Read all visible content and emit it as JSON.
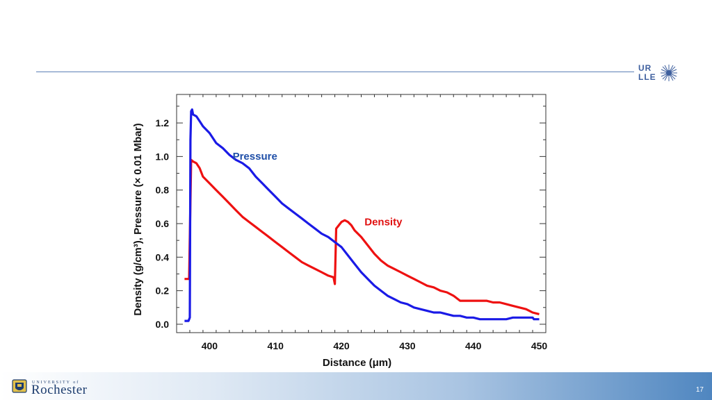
{
  "logo": {
    "icon": "starburst-icon",
    "line1": "UR",
    "line2": "LLE",
    "color": "#3e5f9e"
  },
  "footer": {
    "university_small": "UNIVERSITY of",
    "university_name": "Rochester",
    "page_number": "17"
  },
  "chart_data": {
    "type": "line",
    "title": "",
    "xlabel": "Distance (μm)",
    "ylabel": "Density (g/cm³), Pressure (× 0.01 Mbar)",
    "xlim": [
      395,
      451
    ],
    "ylim": [
      -0.05,
      1.37
    ],
    "xticks": [
      400,
      410,
      420,
      430,
      440,
      450
    ],
    "xtick_labels": [
      "400",
      "410",
      "420",
      "430",
      "440",
      "450"
    ],
    "yticks": [
      0.0,
      0.2,
      0.4,
      0.6,
      0.8,
      1.0,
      1.2
    ],
    "ytick_labels": [
      "0.0",
      "0.2",
      "0.4",
      "0.6",
      "0.8",
      "1.0",
      "1.2"
    ],
    "grid": false,
    "legend": "inline labels",
    "series": [
      {
        "name": "Pressure",
        "color": "#1a1ae6",
        "label_color": "#1f4fa8",
        "points": [
          [
            396.2,
            0.02
          ],
          [
            396.8,
            0.02
          ],
          [
            397.0,
            0.04
          ],
          [
            397.1,
            1.1
          ],
          [
            397.2,
            1.27
          ],
          [
            397.35,
            1.28
          ],
          [
            397.5,
            1.25
          ],
          [
            398.0,
            1.24
          ],
          [
            398.5,
            1.21
          ],
          [
            399.0,
            1.18
          ],
          [
            400.0,
            1.14
          ],
          [
            401.0,
            1.08
          ],
          [
            402.0,
            1.05
          ],
          [
            403.0,
            1.01
          ],
          [
            404.0,
            0.98
          ],
          [
            405.0,
            0.96
          ],
          [
            406.0,
            0.93
          ],
          [
            407.0,
            0.88
          ],
          [
            408.0,
            0.84
          ],
          [
            409.0,
            0.8
          ],
          [
            410.0,
            0.76
          ],
          [
            411.0,
            0.72
          ],
          [
            412.0,
            0.69
          ],
          [
            413.0,
            0.66
          ],
          [
            414.0,
            0.63
          ],
          [
            415.0,
            0.6
          ],
          [
            416.0,
            0.57
          ],
          [
            417.0,
            0.54
          ],
          [
            418.0,
            0.52
          ],
          [
            419.0,
            0.49
          ],
          [
            420.0,
            0.46
          ],
          [
            421.0,
            0.41
          ],
          [
            422.0,
            0.36
          ],
          [
            423.0,
            0.31
          ],
          [
            424.0,
            0.27
          ],
          [
            425.0,
            0.23
          ],
          [
            426.0,
            0.2
          ],
          [
            427.0,
            0.17
          ],
          [
            428.0,
            0.15
          ],
          [
            429.0,
            0.13
          ],
          [
            430.0,
            0.12
          ],
          [
            431.0,
            0.1
          ],
          [
            432.0,
            0.09
          ],
          [
            433.0,
            0.08
          ],
          [
            434.0,
            0.07
          ],
          [
            435.0,
            0.07
          ],
          [
            436.0,
            0.06
          ],
          [
            437.0,
            0.05
          ],
          [
            438.0,
            0.05
          ],
          [
            439.0,
            0.04
          ],
          [
            440.0,
            0.04
          ],
          [
            441.0,
            0.03
          ],
          [
            445.0,
            0.03
          ],
          [
            446.0,
            0.04
          ],
          [
            449.0,
            0.04
          ],
          [
            449.2,
            0.03
          ],
          [
            450.0,
            0.03
          ]
        ]
      },
      {
        "name": "Density",
        "color": "#ee1111",
        "label_color": "#e01010",
        "points": [
          [
            396.2,
            0.27
          ],
          [
            396.9,
            0.27
          ],
          [
            397.2,
            0.98
          ],
          [
            397.5,
            0.97
          ],
          [
            398.0,
            0.96
          ],
          [
            398.5,
            0.93
          ],
          [
            399.0,
            0.88
          ],
          [
            399.5,
            0.86
          ],
          [
            400.0,
            0.84
          ],
          [
            401.0,
            0.8
          ],
          [
            402.0,
            0.76
          ],
          [
            403.0,
            0.72
          ],
          [
            404.0,
            0.68
          ],
          [
            405.0,
            0.64
          ],
          [
            406.0,
            0.61
          ],
          [
            407.0,
            0.58
          ],
          [
            408.0,
            0.55
          ],
          [
            409.0,
            0.52
          ],
          [
            410.0,
            0.49
          ],
          [
            411.0,
            0.46
          ],
          [
            412.0,
            0.43
          ],
          [
            413.0,
            0.4
          ],
          [
            414.0,
            0.37
          ],
          [
            415.0,
            0.35
          ],
          [
            416.0,
            0.33
          ],
          [
            417.0,
            0.31
          ],
          [
            418.0,
            0.29
          ],
          [
            418.8,
            0.28
          ],
          [
            419.0,
            0.24
          ],
          [
            419.2,
            0.57
          ],
          [
            419.6,
            0.59
          ],
          [
            420.0,
            0.61
          ],
          [
            420.5,
            0.62
          ],
          [
            421.0,
            0.61
          ],
          [
            421.5,
            0.59
          ],
          [
            422.0,
            0.56
          ],
          [
            423.0,
            0.52
          ],
          [
            424.0,
            0.47
          ],
          [
            425.0,
            0.42
          ],
          [
            426.0,
            0.38
          ],
          [
            427.0,
            0.35
          ],
          [
            428.0,
            0.33
          ],
          [
            429.0,
            0.31
          ],
          [
            430.0,
            0.29
          ],
          [
            431.0,
            0.27
          ],
          [
            432.0,
            0.25
          ],
          [
            433.0,
            0.23
          ],
          [
            434.0,
            0.22
          ],
          [
            435.0,
            0.2
          ],
          [
            436.0,
            0.19
          ],
          [
            437.0,
            0.17
          ],
          [
            438.0,
            0.14
          ],
          [
            439.0,
            0.14
          ],
          [
            440.0,
            0.14
          ],
          [
            441.0,
            0.14
          ],
          [
            442.0,
            0.14
          ],
          [
            443.0,
            0.13
          ],
          [
            444.0,
            0.13
          ],
          [
            445.0,
            0.12
          ],
          [
            446.0,
            0.11
          ],
          [
            447.0,
            0.1
          ],
          [
            448.0,
            0.09
          ],
          [
            449.0,
            0.07
          ],
          [
            450.0,
            0.06
          ]
        ]
      }
    ],
    "annotations": [
      {
        "text": "Pressure",
        "x": 403.5,
        "y": 0.98,
        "color": "#1f4fa8"
      },
      {
        "text": "Density",
        "x": 423.5,
        "y": 0.59,
        "color": "#e01010"
      }
    ]
  }
}
